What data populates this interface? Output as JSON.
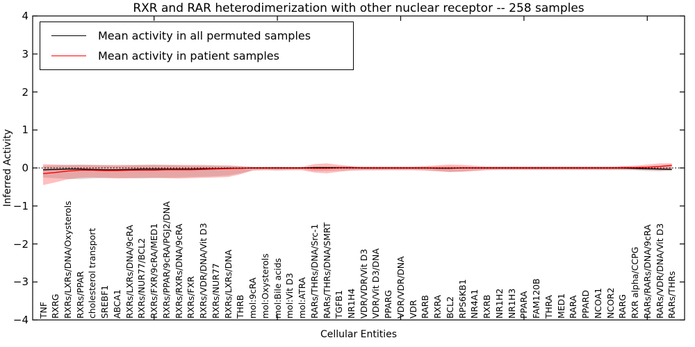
{
  "title": "RXR and RAR heterodimerization with other nuclear receptor -- 258 samples",
  "axes": {
    "ylabel": "Inferred Activity",
    "xlabel": "Cellular Entities",
    "yticks": [
      4,
      3,
      2,
      1,
      0,
      -1,
      -2,
      -3,
      -4
    ],
    "ylim": [
      -4,
      4
    ],
    "xtick_value_positions": [
      10,
      20,
      30,
      40,
      50
    ]
  },
  "legend": {
    "items": [
      {
        "label": "Mean activity in all permuted samples",
        "color": "#000000"
      },
      {
        "label": "Mean activity in patient samples",
        "color": "#ff0000"
      }
    ]
  },
  "colors": {
    "permuted_line": "#000000",
    "patient_line": "#ff0000",
    "permuted_band": "#000000",
    "patient_band": "#ff0000",
    "zero_line": "#000000"
  },
  "chart_data": {
    "type": "line",
    "title": "RXR and RAR heterodimerization with other nuclear receptor -- 258 samples",
    "xlabel": "Cellular Entities",
    "ylabel": "Inferred Activity",
    "ylim": [
      -4,
      4
    ],
    "grid": false,
    "legend_position": "upper left",
    "zero_line": {
      "style": "dotted",
      "color": "#000000",
      "y": 0
    },
    "categories": [
      "TNF",
      "RXRG",
      "RXRs/LXRs/DNA/Oxysterols",
      "RXRs/PPAR",
      "cholesterol transport",
      "SREBF1",
      "ABCA1",
      "RXRs/LXRs/DNA/9cRA",
      "RXRs/NUR77/BCL2",
      "RXRs/FXR/9cRA/MED1",
      "RXRs/PPAR/9cRA/PGJ2/DNA",
      "RXRs/RXRs/DNA/9cRA",
      "RXRs/FXR",
      "RXRs/VDR/DNA/Vit D3",
      "RXRs/NUR77",
      "RXRs/LXRs/DNA",
      "THRB",
      "mol:9cRA",
      "mol:Oxysterols",
      "mol:Bile acids",
      "mol:Vit D3",
      "mol:ATRA",
      "RARs/THRs/DNA/Src-1",
      "RARs/THRs/DNA/SMRT",
      "TGFB1",
      "NR1H4",
      "VDR/VDR/Vit D3",
      "VDR/Vit D3/DNA",
      "PPARG",
      "VDR/VDR/DNA",
      "VDR",
      "RARB",
      "RXRA",
      "BCL2",
      "RPS6KB1",
      "NR4A1",
      "RXRB",
      "NR1H2",
      "NR1H3",
      "PPARA",
      "FAM120B",
      "THRA",
      "MED1",
      "RARA",
      "PPARD",
      "NCOA1",
      "NCOR2",
      "RARG",
      "RXR alpha/CCPG",
      "RARs/RARs/DNA/9cRA",
      "RARs/VDR/DNA/Vit D3",
      "RARs/THRs"
    ],
    "series": [
      {
        "name": "Mean activity in all permuted samples",
        "color": "#000000",
        "values": [
          -0.05,
          -0.04,
          -0.03,
          -0.03,
          -0.04,
          -0.05,
          -0.05,
          -0.04,
          -0.03,
          -0.03,
          -0.03,
          -0.03,
          -0.03,
          -0.02,
          -0.02,
          -0.01,
          -0.01,
          0,
          0,
          0,
          0,
          0,
          0.01,
          0.01,
          0.01,
          0.01,
          0,
          0,
          0,
          0,
          0,
          0,
          -0.01,
          -0.01,
          0,
          0,
          0,
          0,
          0,
          0,
          0,
          0,
          0,
          0,
          0,
          0,
          0,
          0,
          -0.01,
          -0.02,
          -0.03,
          -0.04
        ]
      },
      {
        "name": "Mean activity in patient samples",
        "color": "#ff0000",
        "values": [
          -0.15,
          -0.12,
          -0.08,
          -0.06,
          -0.06,
          -0.07,
          -0.07,
          -0.06,
          -0.06,
          -0.06,
          -0.05,
          -0.05,
          -0.05,
          -0.04,
          -0.03,
          -0.02,
          -0.01,
          0,
          0,
          0,
          0,
          0,
          -0.01,
          -0.01,
          0,
          0,
          0,
          0,
          0,
          0,
          0,
          0,
          0,
          0,
          0,
          0,
          0,
          0,
          0,
          0,
          0,
          0,
          0,
          0,
          0,
          0,
          0,
          0.01,
          0.01,
          0.02,
          0.04,
          0.07
        ]
      }
    ],
    "bands": [
      {
        "name": "permuted-samples-band",
        "color": "#000000",
        "opacity": 0.13,
        "upper": [
          0.06,
          0.07,
          0.08,
          0.09,
          0.08,
          0.07,
          0.06,
          0.07,
          0.08,
          0.09,
          0.08,
          0.07,
          0.06,
          0.06,
          0.06,
          0.05,
          0.04,
          0.02,
          0.02,
          0.03,
          0.02,
          0.02,
          0.03,
          0.03,
          0.03,
          0.03,
          0.02,
          0.02,
          0.02,
          0.02,
          0.02,
          0.03,
          0.04,
          0.05,
          0.04,
          0.03,
          0.03,
          0.03,
          0.03,
          0.03,
          0.03,
          0.03,
          0.03,
          0.03,
          0.03,
          0.03,
          0.03,
          0.03,
          0.03,
          0.04,
          0.05,
          0.05
        ],
        "lower": [
          -0.25,
          -0.27,
          -0.29,
          -0.3,
          -0.28,
          -0.27,
          -0.26,
          -0.27,
          -0.28,
          -0.27,
          -0.26,
          -0.25,
          -0.24,
          -0.23,
          -0.22,
          -0.2,
          -0.14,
          -0.06,
          -0.05,
          -0.07,
          -0.05,
          -0.04,
          -0.08,
          -0.08,
          -0.07,
          -0.06,
          -0.06,
          -0.06,
          -0.05,
          -0.05,
          -0.05,
          -0.06,
          -0.08,
          -0.1,
          -0.09,
          -0.07,
          -0.05,
          -0.05,
          -0.05,
          -0.05,
          -0.05,
          -0.05,
          -0.05,
          -0.05,
          -0.05,
          -0.05,
          -0.05,
          -0.05,
          -0.06,
          -0.08,
          -0.09,
          -0.07
        ]
      },
      {
        "name": "patient-samples-band",
        "color": "#ff0000",
        "opacity": 0.25,
        "upper": [
          0.1,
          0.09,
          0.08,
          0.08,
          0.08,
          0.08,
          0.08,
          0.08,
          0.08,
          0.08,
          0.08,
          0.08,
          0.08,
          0.08,
          0.07,
          0.07,
          0.05,
          0.03,
          0.03,
          0.03,
          0.03,
          0.03,
          0.1,
          0.12,
          0.08,
          0.05,
          0.04,
          0.04,
          0.04,
          0.04,
          0.04,
          0.05,
          0.07,
          0.09,
          0.08,
          0.06,
          0.04,
          0.04,
          0.04,
          0.04,
          0.04,
          0.04,
          0.04,
          0.04,
          0.04,
          0.04,
          0.04,
          0.05,
          0.06,
          0.09,
          0.12,
          0.12
        ],
        "lower": [
          -0.45,
          -0.38,
          -0.3,
          -0.26,
          -0.25,
          -0.26,
          -0.28,
          -0.27,
          -0.26,
          -0.26,
          -0.27,
          -0.28,
          -0.27,
          -0.26,
          -0.25,
          -0.24,
          -0.17,
          -0.07,
          -0.06,
          -0.06,
          -0.06,
          -0.06,
          -0.12,
          -0.14,
          -0.1,
          -0.07,
          -0.06,
          -0.06,
          -0.06,
          -0.06,
          -0.06,
          -0.07,
          -0.09,
          -0.11,
          -0.1,
          -0.08,
          -0.06,
          -0.05,
          -0.05,
          -0.05,
          -0.05,
          -0.05,
          -0.05,
          -0.05,
          -0.05,
          -0.05,
          -0.05,
          -0.05,
          -0.05,
          -0.06,
          -0.07,
          -0.05
        ]
      }
    ]
  }
}
